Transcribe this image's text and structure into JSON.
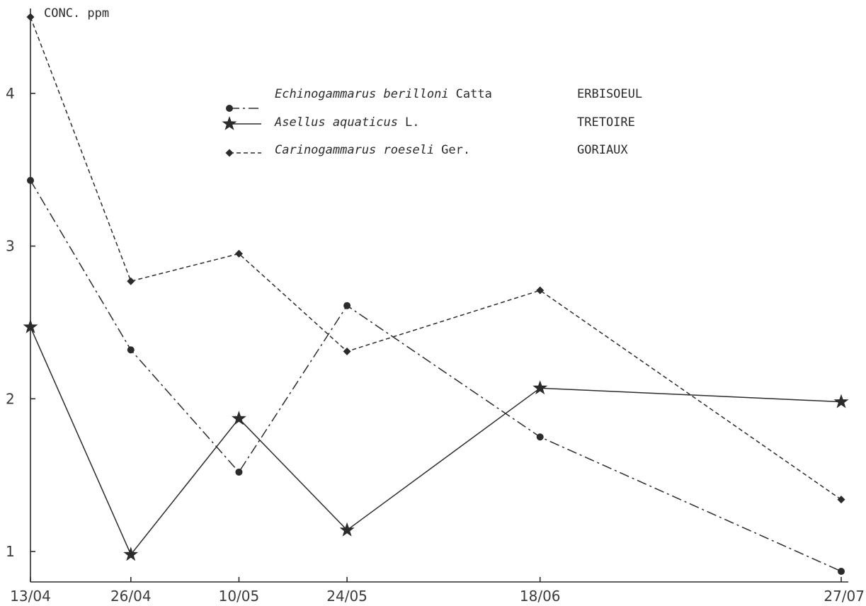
{
  "chart_data": {
    "type": "line",
    "ylabel": "CONC. ppm",
    "categories": [
      "13/04",
      "26/04",
      "10/05",
      "24/05",
      "18/06",
      "27/07"
    ],
    "x_days": [
      0,
      13,
      27,
      41,
      66,
      105
    ],
    "yticks": [
      "1",
      "2",
      "3",
      "4"
    ],
    "ylim": [
      0.8,
      4.6
    ],
    "series": [
      {
        "name": "Echinogammarus berilloni",
        "author": "Catta",
        "site": "ERBISOEUL",
        "marker": "circle",
        "dash": "dashdot",
        "values": [
          3.43,
          2.32,
          1.52,
          2.61,
          1.75,
          0.87
        ]
      },
      {
        "name": "Asellus aquaticus",
        "author": "L.",
        "site": "TRETOIRE",
        "marker": "star",
        "dash": "solid",
        "values": [
          2.47,
          0.98,
          1.87,
          1.14,
          2.07,
          1.98
        ]
      },
      {
        "name": "Carinogammarus roeseli",
        "author": "Ger.",
        "site": "GORIAUX",
        "marker": "diamond",
        "dash": "dashed",
        "values": [
          4.5,
          2.77,
          2.95,
          2.31,
          2.71,
          1.34
        ]
      }
    ],
    "grid": false,
    "legend_position": "top-center"
  }
}
